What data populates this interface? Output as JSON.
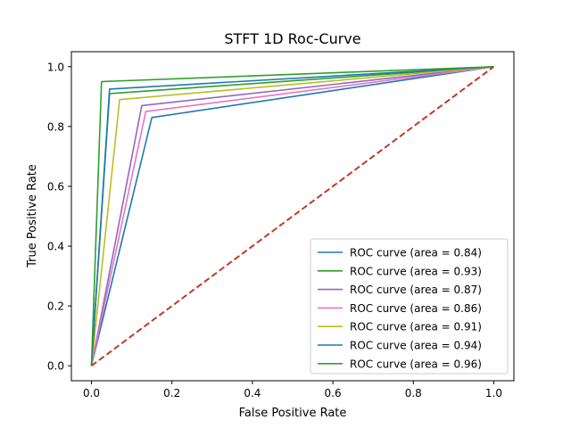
{
  "chart_data": {
    "type": "line",
    "title": "STFT 1D Roc-Curve",
    "xlabel": "False Positive Rate",
    "ylabel": "True Positive Rate",
    "xlim": [
      -0.05,
      1.05
    ],
    "ylim": [
      -0.05,
      1.05
    ],
    "xticks": [
      0.0,
      0.2,
      0.4,
      0.6,
      0.8,
      1.0
    ],
    "yticks": [
      0.0,
      0.2,
      0.4,
      0.6,
      0.8,
      1.0
    ],
    "xtick_labels": [
      "0.0",
      "0.2",
      "0.4",
      "0.6",
      "0.8",
      "1.0"
    ],
    "ytick_labels": [
      "0.0",
      "0.2",
      "0.4",
      "0.6",
      "0.8",
      "1.0"
    ],
    "grid": false,
    "legend_position": "lower-right",
    "series": [
      {
        "name": "ROC curve (area = 0.84)",
        "color": "#1f77b4",
        "x": [
          0,
          0.15,
          1
        ],
        "y": [
          0,
          0.83,
          1
        ]
      },
      {
        "name": "ROC curve (area = 0.93)",
        "color": "#2ca02c",
        "x": [
          0,
          0.045,
          1
        ],
        "y": [
          0,
          0.91,
          1
        ]
      },
      {
        "name": "ROC curve (area = 0.87)",
        "color": "#9467bd",
        "x": [
          0,
          0.125,
          1
        ],
        "y": [
          0,
          0.87,
          1
        ]
      },
      {
        "name": "ROC curve (area = 0.86)",
        "color": "#e377c2",
        "x": [
          0,
          0.135,
          1
        ],
        "y": [
          0,
          0.85,
          1
        ]
      },
      {
        "name": "ROC curve (area = 0.91)",
        "color": "#bcbd22",
        "x": [
          0,
          0.07,
          1
        ],
        "y": [
          0,
          0.89,
          1
        ]
      },
      {
        "name": "ROC curve (area = 0.94)",
        "color": "#1f77b4",
        "x": [
          0,
          0.045,
          1
        ],
        "y": [
          0,
          0.925,
          1
        ]
      },
      {
        "name": "ROC curve (area = 0.96)",
        "color": "#2ca02c",
        "x": [
          0,
          0.025,
          1
        ],
        "y": [
          0,
          0.95,
          1
        ]
      }
    ],
    "diagonal": {
      "color": "#c0392b",
      "style": "dashed",
      "x": [
        0,
        1
      ],
      "y": [
        0,
        1
      ]
    }
  }
}
